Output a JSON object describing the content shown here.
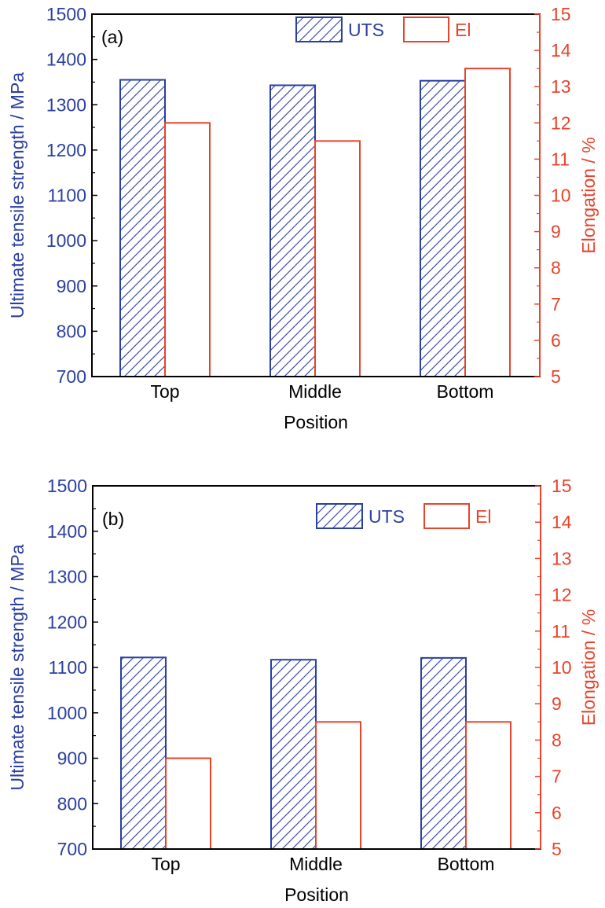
{
  "colors": {
    "uts": "#2B3FA0",
    "el": "#E8432B",
    "axis": "#000000"
  },
  "chart_data": [
    {
      "type": "bar",
      "panel_label": "(a)",
      "categories": [
        "Top",
        "Middle",
        "Bottom"
      ],
      "xlabel": "Position",
      "ylabel_left": "Ultimate tensile strength / MPa",
      "ylabel_right": "Elongation / %",
      "ylim_left": [
        700,
        1500
      ],
      "ylim_right": [
        5,
        15
      ],
      "yticks_left": [
        "700",
        "800",
        "900",
        "1000",
        "1100",
        "1200",
        "1300",
        "1400",
        "1500"
      ],
      "yticks_right": [
        "5",
        "6",
        "7",
        "8",
        "9",
        "10",
        "11",
        "12",
        "13",
        "14",
        "15"
      ],
      "legend_position": "top-right",
      "series": [
        {
          "name": "UTS",
          "axis": "left",
          "style": "hatched",
          "values": [
            1355,
            1343,
            1353
          ]
        },
        {
          "name": "El",
          "axis": "right",
          "style": "open",
          "values": [
            12.0,
            11.5,
            13.5
          ]
        }
      ]
    },
    {
      "type": "bar",
      "panel_label": "(b)",
      "categories": [
        "Top",
        "Middle",
        "Bottom"
      ],
      "xlabel": "Position",
      "ylabel_left": "Ultimate tensile strength / MPa",
      "ylabel_right": "Elongation / %",
      "ylim_left": [
        700,
        1500
      ],
      "ylim_right": [
        5,
        15
      ],
      "yticks_left": [
        "700",
        "800",
        "900",
        "1000",
        "1100",
        "1200",
        "1300",
        "1400",
        "1500"
      ],
      "yticks_right": [
        "5",
        "6",
        "7",
        "8",
        "9",
        "10",
        "11",
        "12",
        "13",
        "14",
        "15"
      ],
      "legend_position": "top-right",
      "series": [
        {
          "name": "UTS",
          "axis": "left",
          "style": "hatched",
          "values": [
            1122,
            1117,
            1121
          ]
        },
        {
          "name": "El",
          "axis": "right",
          "style": "open",
          "values": [
            7.5,
            8.5,
            8.5
          ]
        }
      ]
    }
  ]
}
